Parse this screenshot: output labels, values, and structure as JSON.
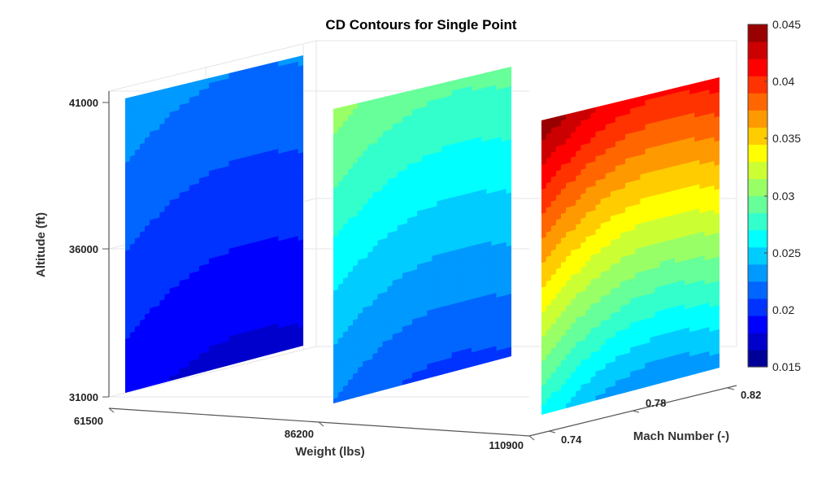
{
  "chart_data": {
    "type": "contour",
    "title": "CD Contours for Single Point",
    "xlabel": "Weight (lbs)",
    "ylabel": "Mach Number (-)",
    "zlabel": "Altitude (ft)",
    "x_ticks": [
      "61500",
      "86200",
      "110900"
    ],
    "y_ticks": [
      "0.74",
      "0.78",
      "0.82"
    ],
    "z_ticks": [
      "31000",
      "36000",
      "41000"
    ],
    "xlim": [
      61500,
      110900
    ],
    "ylim": [
      0.74,
      0.82
    ],
    "zlim": [
      31000,
      41000
    ],
    "grid": true,
    "colormap": "jet",
    "colorbar": {
      "range": [
        0.015,
        0.045
      ],
      "ticks": [
        "0.015",
        "0.02",
        "0.025",
        "0.03",
        "0.035",
        "0.04",
        "0.045"
      ],
      "levels": 20
    },
    "slices": [
      {
        "weight": 61500,
        "cd_min": 0.0175,
        "cd_max": 0.0235
      },
      {
        "weight": 86200,
        "cd_min": 0.0205,
        "cd_max": 0.0305
      },
      {
        "weight": 110900,
        "cd_min": 0.0225,
        "cd_max": 0.0445
      }
    ]
  }
}
